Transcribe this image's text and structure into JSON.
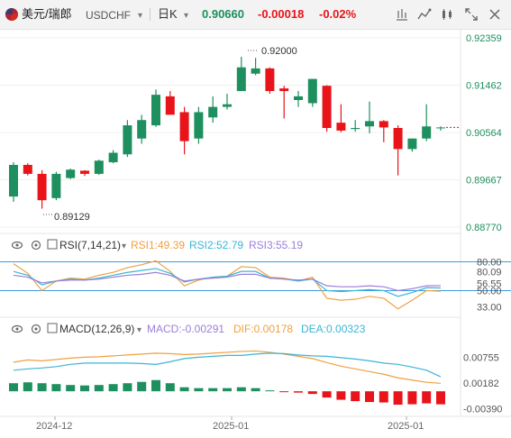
{
  "toolbar": {
    "symbol_name": "美元/瑞郎",
    "symbol_code": "USDCHF",
    "dropdown_caret": "▾",
    "timeframe": "日K",
    "timeframe_caret": "▾",
    "price": "0.90660",
    "change": "-0.00018",
    "change_pct": "-0.02%",
    "icons": [
      "flag-icon",
      "chart-type-icon",
      "indicator-icon",
      "drawing-icon",
      "draw-tools-icon",
      "fullscreen-icon",
      "close-icon"
    ],
    "colors": {
      "up": "#1e8f5e",
      "down": "#e8141a",
      "price": "#1e8f5e",
      "change": "#e8141a"
    }
  },
  "chart_data": [
    {
      "type": "candlestick",
      "y_axis_ticks": [
        0.92359,
        0.91462,
        0.90564,
        0.89667,
        0.8877
      ],
      "y_axis_labels": [
        "0.92359",
        "0.91462",
        "0.90564",
        "0.89667",
        "0.88770"
      ],
      "ylim": [
        0.8877,
        0.92359
      ],
      "x_axis_labels": [
        "2024-12",
        "2025-01",
        "2025-01"
      ],
      "annotations": {
        "high_label": "0.92000",
        "high_value": 0.92,
        "low_label": "0.89129",
        "low_value": 0.89129
      },
      "last_price": 0.9066,
      "colors": {
        "up": "#1e8f5e",
        "down": "#e8141a"
      },
      "candles": [
        {
          "o": 0.8935,
          "h": 0.9,
          "l": 0.8925,
          "c": 0.8995
        },
        {
          "o": 0.8995,
          "h": 0.8998,
          "l": 0.8975,
          "c": 0.8978
        },
        {
          "o": 0.8978,
          "h": 0.8985,
          "l": 0.8912,
          "c": 0.8928
        },
        {
          "o": 0.8932,
          "h": 0.8982,
          "l": 0.8928,
          "c": 0.8978
        },
        {
          "o": 0.897,
          "h": 0.8988,
          "l": 0.8968,
          "c": 0.8986
        },
        {
          "o": 0.8984,
          "h": 0.8985,
          "l": 0.8974,
          "c": 0.8978
        },
        {
          "o": 0.8978,
          "h": 0.9005,
          "l": 0.8976,
          "c": 0.9003
        },
        {
          "o": 0.9,
          "h": 0.9023,
          "l": 0.8998,
          "c": 0.9018
        },
        {
          "o": 0.9015,
          "h": 0.908,
          "l": 0.901,
          "c": 0.907
        },
        {
          "o": 0.9045,
          "h": 0.909,
          "l": 0.9035,
          "c": 0.908
        },
        {
          "o": 0.907,
          "h": 0.9138,
          "l": 0.9067,
          "c": 0.9128
        },
        {
          "o": 0.9125,
          "h": 0.9135,
          "l": 0.909,
          "c": 0.909
        },
        {
          "o": 0.9095,
          "h": 0.9105,
          "l": 0.9015,
          "c": 0.904
        },
        {
          "o": 0.9045,
          "h": 0.9105,
          "l": 0.9035,
          "c": 0.9095
        },
        {
          "o": 0.9085,
          "h": 0.9125,
          "l": 0.9075,
          "c": 0.9105
        },
        {
          "o": 0.9105,
          "h": 0.913,
          "l": 0.91,
          "c": 0.911
        },
        {
          "o": 0.9135,
          "h": 0.92,
          "l": 0.9135,
          "c": 0.918
        },
        {
          "o": 0.9168,
          "h": 0.9198,
          "l": 0.9165,
          "c": 0.9178
        },
        {
          "o": 0.9178,
          "h": 0.918,
          "l": 0.913,
          "c": 0.9135
        },
        {
          "o": 0.914,
          "h": 0.9145,
          "l": 0.9083,
          "c": 0.9135
        },
        {
          "o": 0.9118,
          "h": 0.9135,
          "l": 0.9105,
          "c": 0.9125
        },
        {
          "o": 0.9112,
          "h": 0.9158,
          "l": 0.9105,
          "c": 0.9158
        },
        {
          "o": 0.9145,
          "h": 0.9146,
          "l": 0.9058,
          "c": 0.9065
        },
        {
          "o": 0.9075,
          "h": 0.911,
          "l": 0.9057,
          "c": 0.906
        },
        {
          "o": 0.9063,
          "h": 0.908,
          "l": 0.9058,
          "c": 0.9065
        },
        {
          "o": 0.9068,
          "h": 0.9115,
          "l": 0.9055,
          "c": 0.9078
        },
        {
          "o": 0.9078,
          "h": 0.908,
          "l": 0.9038,
          "c": 0.9066
        },
        {
          "o": 0.9065,
          "h": 0.907,
          "l": 0.8975,
          "c": 0.9025
        },
        {
          "o": 0.9025,
          "h": 0.9045,
          "l": 0.902,
          "c": 0.9045
        },
        {
          "o": 0.9045,
          "h": 0.911,
          "l": 0.904,
          "c": 0.9068
        },
        {
          "o": 0.9066,
          "h": 0.9068,
          "l": 0.906,
          "c": 0.9066
        }
      ]
    },
    {
      "type": "line",
      "name": "RSI",
      "label": "RSI(7,14,21)",
      "caret": "▾",
      "legend": [
        {
          "text": "RSI1:49.39",
          "color": "#f0a040"
        },
        {
          "text": "RSI2:52.79",
          "color": "#3bb5d6"
        },
        {
          "text": "RSI3:55.19",
          "color": "#9b7fd8"
        }
      ],
      "y_axis_labels": [
        "80.00",
        "80.09",
        "56.55",
        "50.00",
        "33.00"
      ],
      "y_axis_values": [
        80.0,
        80.09,
        56.55,
        50.0,
        33.0
      ],
      "ylim": [
        26,
        88
      ],
      "reference_lines": [
        80,
        50
      ],
      "series": [
        {
          "name": "RSI1",
          "color": "#f0a040",
          "values": [
            78,
            68,
            50,
            60,
            63,
            62,
            66,
            69,
            74,
            77,
            81,
            70,
            55,
            61,
            64,
            65,
            75,
            74,
            64,
            63,
            60,
            64,
            42,
            40,
            41,
            44,
            42,
            31,
            40,
            50,
            49.39
          ]
        },
        {
          "name": "RSI2",
          "color": "#3bb5d6",
          "values": [
            70,
            66,
            56,
            60,
            62,
            61,
            63,
            66,
            69,
            71,
            73,
            68,
            59,
            62,
            64,
            65,
            70,
            70,
            63,
            62,
            60,
            62,
            50,
            49,
            50,
            51,
            50,
            44,
            48,
            53,
            52.79
          ]
        },
        {
          "name": "RSI3",
          "color": "#9b7fd8",
          "values": [
            66,
            64,
            58,
            60,
            61,
            61,
            62,
            64,
            66,
            67,
            69,
            66,
            60,
            62,
            63,
            64,
            67,
            67,
            63,
            62,
            61,
            62,
            55,
            54,
            54,
            55,
            54,
            50,
            52,
            55,
            55.19
          ]
        }
      ]
    },
    {
      "type": "bar",
      "name": "MACD",
      "label": "MACD(12,26,9)",
      "caret": "▾",
      "legend": [
        {
          "text": "MACD:-0.00291",
          "color": "#9b7fd8"
        },
        {
          "text": "DIF:0.00178",
          "color": "#f0a040"
        },
        {
          "text": "DEA:0.00323",
          "color": "#3bb5d6"
        }
      ],
      "y_axis_labels": [
        "0.00755",
        "0.00182",
        "-0.00390"
      ],
      "y_axis_values": [
        0.00755,
        0.00182,
        -0.0039
      ],
      "ylim": [
        -0.0052,
        0.0115
      ],
      "histogram": [
        0.0018,
        0.002,
        0.0018,
        0.0016,
        0.0014,
        0.0013,
        0.0014,
        0.0016,
        0.0018,
        0.0021,
        0.0025,
        0.0018,
        0.0009,
        0.0007,
        0.0007,
        0.0007,
        0.0009,
        0.0007,
        0.0002,
        -0.0001,
        -0.0003,
        -0.0006,
        -0.0014,
        -0.0019,
        -0.0022,
        -0.0024,
        -0.0025,
        -0.003,
        -0.0029,
        -0.0027,
        -0.00291
      ],
      "dif": [
        0.0065,
        0.007,
        0.0068,
        0.0071,
        0.0074,
        0.0076,
        0.0077,
        0.0079,
        0.0081,
        0.0083,
        0.0085,
        0.0084,
        0.0082,
        0.0083,
        0.0085,
        0.0087,
        0.0089,
        0.009,
        0.0087,
        0.0083,
        0.0078,
        0.0073,
        0.0064,
        0.0056,
        0.005,
        0.0044,
        0.0038,
        0.003,
        0.0025,
        0.002,
        0.00178
      ],
      "dea": [
        0.0047,
        0.005,
        0.0052,
        0.0055,
        0.006,
        0.0063,
        0.0063,
        0.0063,
        0.0063,
        0.0062,
        0.006,
        0.0066,
        0.0073,
        0.0076,
        0.0078,
        0.008,
        0.008,
        0.0083,
        0.0085,
        0.0084,
        0.0081,
        0.0079,
        0.0078,
        0.0075,
        0.0072,
        0.0068,
        0.0063,
        0.006,
        0.0054,
        0.0047,
        0.00323
      ]
    }
  ]
}
